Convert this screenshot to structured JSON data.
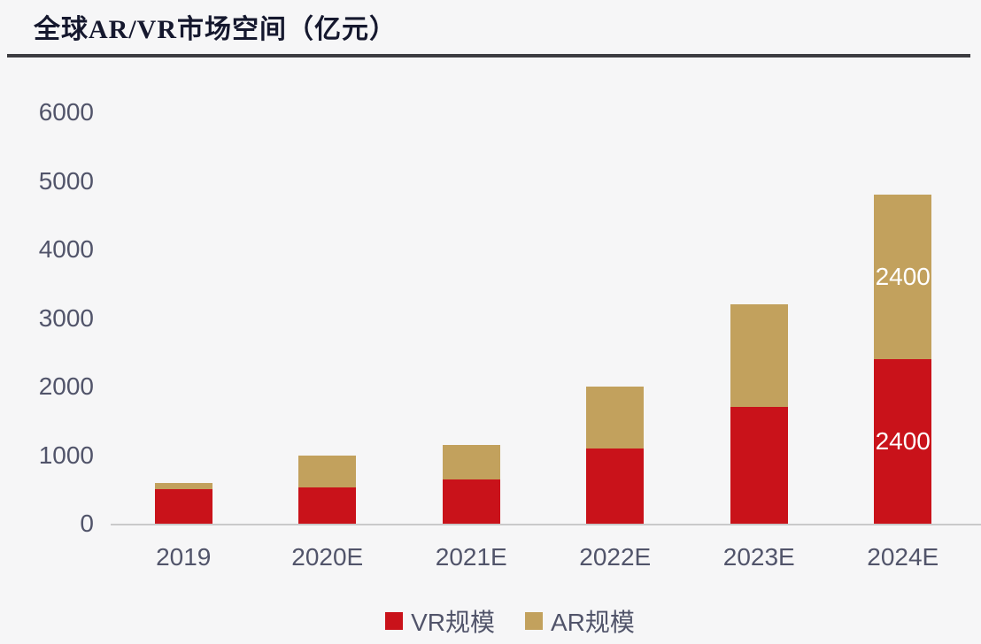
{
  "header": {
    "title": "全球AR/VR市场空间（亿元）"
  },
  "chart_data": {
    "type": "bar",
    "stacked": true,
    "title": "全球AR/VR市场空间（亿元）",
    "unit_label": "亿元",
    "categories": [
      "2019",
      "2020E",
      "2021E",
      "2022E",
      "2023E",
      "2024E"
    ],
    "series": [
      {
        "id": "vr",
        "name": "VR规模",
        "color": "#c9121a",
        "values": [
          500,
          530,
          650,
          1100,
          1700,
          2400
        ],
        "value_labels": [
          "",
          "",
          "",
          "",
          "",
          "2400"
        ]
      },
      {
        "id": "ar",
        "name": "AR规模",
        "color": "#c2a15d",
        "values": [
          100,
          470,
          500,
          900,
          1500,
          2400
        ],
        "value_labels": [
          "",
          "",
          "",
          "",
          "",
          "2400"
        ]
      }
    ],
    "ylim": [
      0,
      6000
    ],
    "yticks": [
      0,
      1000,
      2000,
      3000,
      4000,
      5000,
      6000
    ],
    "grid": false,
    "legend_position": "bottom",
    "value_label_color": "#ffffff",
    "axis_text_color": "#51546a"
  }
}
